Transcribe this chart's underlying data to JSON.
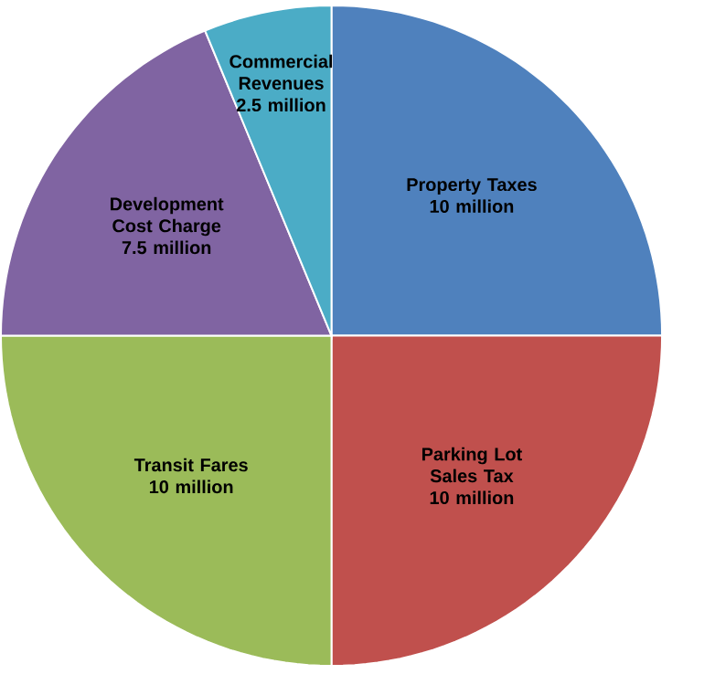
{
  "chart_data": {
    "type": "pie",
    "categories": [
      "Property Taxes",
      "Parking Lot Sales Tax",
      "Transit Fares",
      "Development Cost Charge",
      "Commercial Revenues"
    ],
    "values": [
      10,
      10,
      10,
      7.5,
      2.5
    ],
    "value_labels": [
      "10 million",
      "10 million",
      "10 million",
      "7.5 million",
      "2.5 million"
    ],
    "colors": [
      "#4f81bd",
      "#c0504d",
      "#9bbb59",
      "#8064a2",
      "#4bacc6"
    ]
  }
}
